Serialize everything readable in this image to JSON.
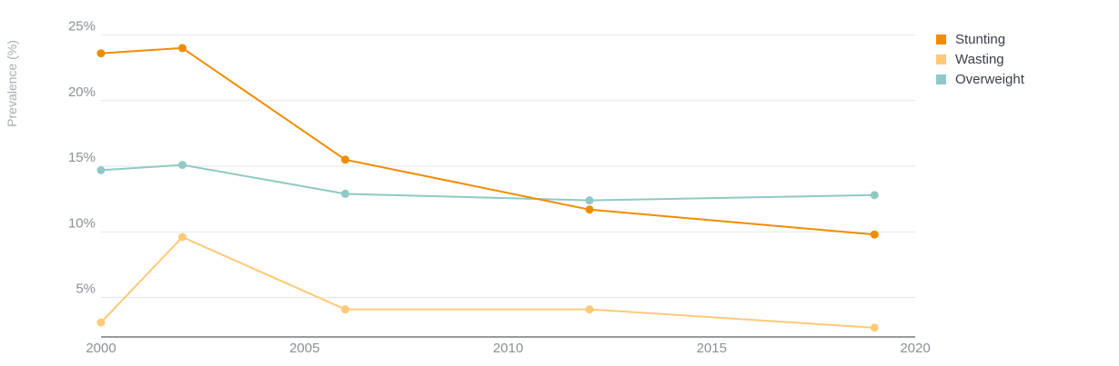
{
  "chart_data": {
    "type": "line",
    "title": "",
    "xlabel": "",
    "ylabel": "Prevalence (%)",
    "xlim": [
      2000,
      2020
    ],
    "ylim": [
      2,
      26
    ],
    "x_ticks": [
      2000,
      2005,
      2010,
      2015,
      2020
    ],
    "x_tick_labels": [
      "2000",
      "2005",
      "2010",
      "2015",
      "2020"
    ],
    "y_ticks": [
      5,
      10,
      15,
      20,
      25
    ],
    "y_tick_labels": [
      "5%",
      "10%",
      "15%",
      "20%",
      "25%"
    ],
    "grid": true,
    "legend_position": "top-right",
    "series": [
      {
        "name": "Stunting",
        "color": "#f08c00",
        "x": [
          2000,
          2002,
          2006,
          2012,
          2019
        ],
        "values": [
          23.6,
          24.0,
          15.5,
          11.7,
          9.8
        ]
      },
      {
        "name": "Wasting",
        "color": "#ffc978",
        "x": [
          2000,
          2002,
          2006,
          2012,
          2019
        ],
        "values": [
          3.1,
          9.6,
          4.1,
          4.1,
          2.7
        ]
      },
      {
        "name": "Overweight",
        "color": "#8fc9c5",
        "x": [
          2000,
          2002,
          2006,
          2012,
          2019
        ],
        "values": [
          14.7,
          15.1,
          12.9,
          12.4,
          12.8
        ]
      }
    ],
    "colors": {
      "grid": "#e3e6ea",
      "axis": "#33363b"
    }
  }
}
